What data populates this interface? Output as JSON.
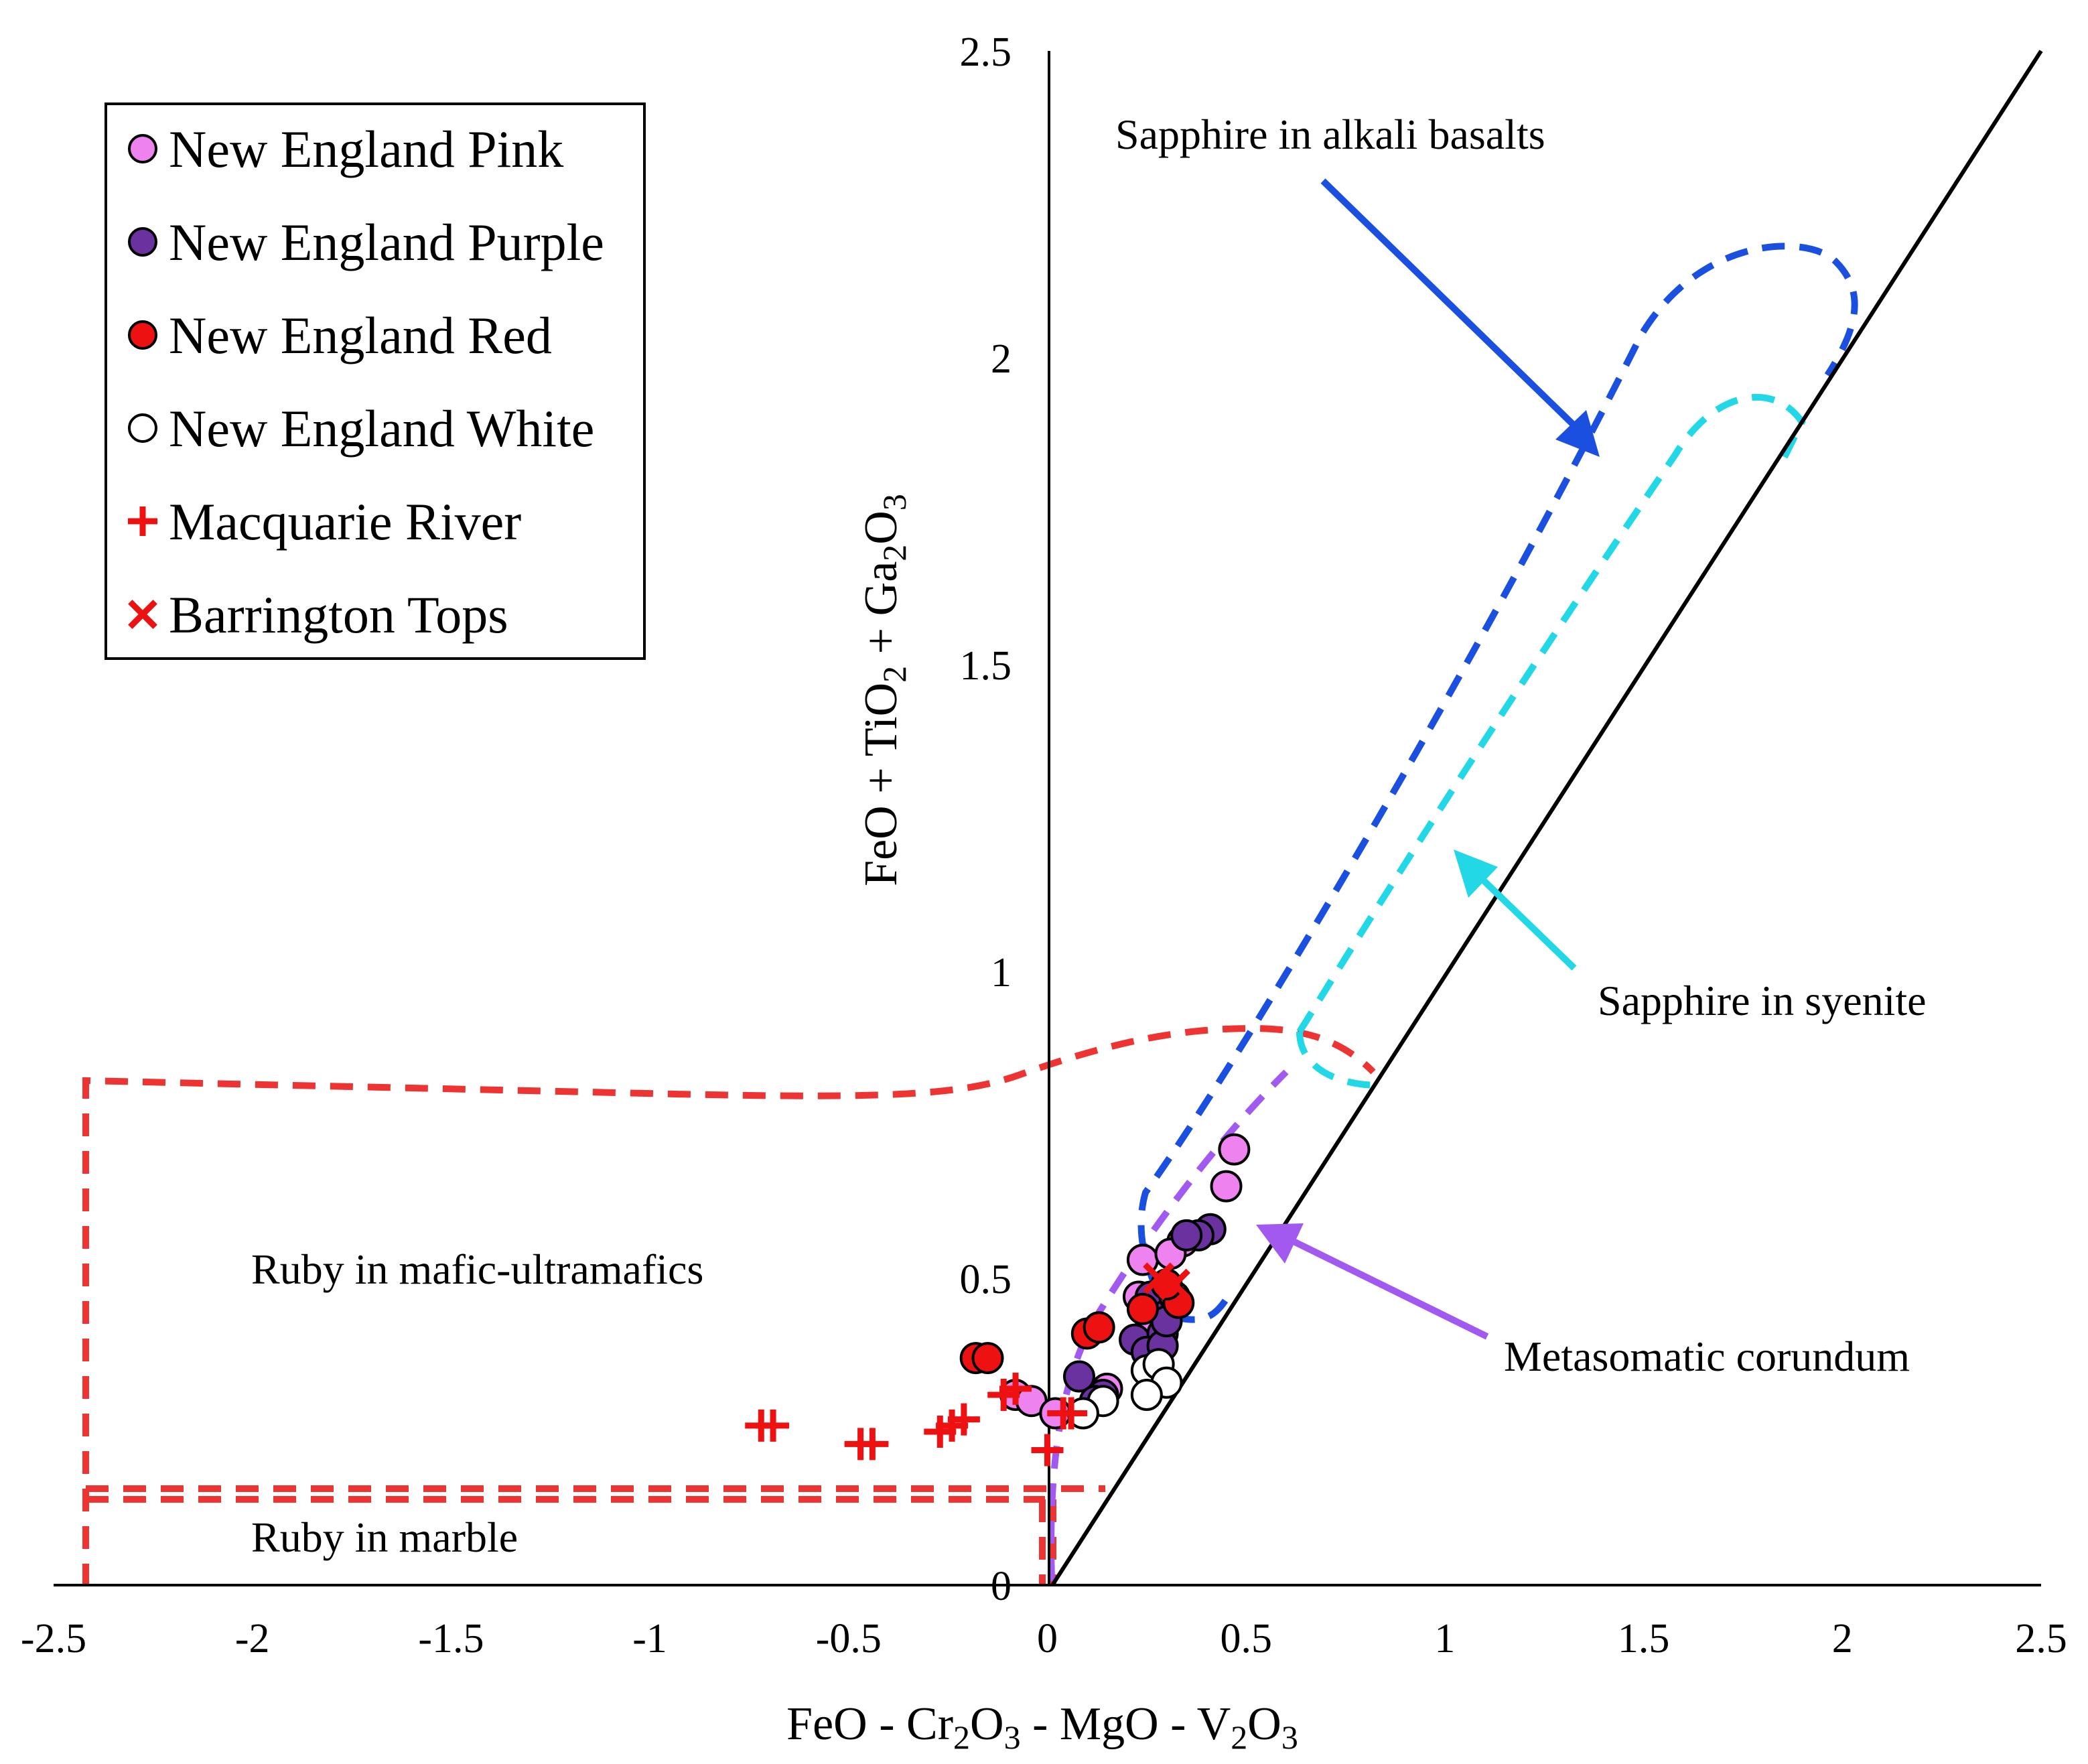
{
  "chart_data": {
    "type": "scatter",
    "title": "",
    "xlabel": "FeO - Cr2O3 - MgO - V2O3",
    "ylabel": "FeO + TiO2 + Ga2O3",
    "xlim": [
      -2.5,
      2.5
    ],
    "ylim": [
      0,
      2.5
    ],
    "x_ticks": [
      "-2.5",
      "-2",
      "-1.5",
      "-1",
      "-0.5",
      "0",
      "0.5",
      "1",
      "1.5",
      "2",
      "2.5"
    ],
    "y_ticks": [
      "0",
      "0.5",
      "1",
      "1.5",
      "2",
      "2.5"
    ],
    "grid": false,
    "legend_position": "top-left",
    "series": [
      {
        "name": "New England Pink",
        "marker": "circle",
        "color": "#ee82ee",
        "points": [
          [
            0.47,
            0.71
          ],
          [
            0.45,
            0.65
          ],
          [
            0.34,
            0.56
          ],
          [
            0.24,
            0.53
          ],
          [
            0.31,
            0.54
          ],
          [
            0.23,
            0.47
          ],
          [
            -0.08,
            0.31
          ],
          [
            -0.04,
            0.3
          ],
          [
            0.02,
            0.28
          ],
          [
            0.15,
            0.32
          ],
          [
            0.26,
            0.42
          ]
        ]
      },
      {
        "name": "New England Purple",
        "marker": "circle",
        "color": "#6a329f",
        "points": [
          [
            0.41,
            0.58
          ],
          [
            0.38,
            0.57
          ],
          [
            0.35,
            0.57
          ],
          [
            0.26,
            0.47
          ],
          [
            0.3,
            0.44
          ],
          [
            0.22,
            0.4
          ],
          [
            0.29,
            0.41
          ],
          [
            0.25,
            0.38
          ],
          [
            0.29,
            0.39
          ],
          [
            0.08,
            0.34
          ],
          [
            0.14,
            0.31
          ],
          [
            0.12,
            0.3
          ],
          [
            0.32,
            0.47
          ],
          [
            0.3,
            0.43
          ]
        ]
      },
      {
        "name": "New England Red",
        "marker": "circle",
        "color": "#ee1111",
        "points": [
          [
            -0.18,
            0.37
          ],
          [
            -0.15,
            0.37
          ],
          [
            0.1,
            0.41
          ],
          [
            0.13,
            0.42
          ],
          [
            0.24,
            0.45
          ],
          [
            0.33,
            0.46
          ],
          [
            0.3,
            0.49
          ]
        ]
      },
      {
        "name": "New England White",
        "marker": "circle",
        "color": "#ffffff",
        "points": [
          [
            0.25,
            0.35
          ],
          [
            0.28,
            0.36
          ],
          [
            0.3,
            0.33
          ],
          [
            0.25,
            0.31
          ],
          [
            0.14,
            0.3
          ],
          [
            0.09,
            0.28
          ]
        ]
      },
      {
        "name": "Macquarie River",
        "marker": "plus",
        "color": "#ee1111",
        "points": [
          [
            -0.72,
            0.26
          ],
          [
            -0.69,
            0.26
          ],
          [
            -0.47,
            0.23
          ],
          [
            -0.44,
            0.23
          ],
          [
            -0.27,
            0.25
          ],
          [
            -0.24,
            0.26
          ],
          [
            -0.21,
            0.27
          ],
          [
            -0.11,
            0.31
          ],
          [
            -0.08,
            0.32
          ],
          [
            0.04,
            0.28
          ],
          [
            0.06,
            0.28
          ],
          [
            0.0,
            0.22
          ]
        ]
      },
      {
        "name": "Barrington Tops",
        "marker": "x",
        "color": "#ee1111",
        "points": [
          [
            0.28,
            0.5
          ],
          [
            0.32,
            0.49
          ]
        ]
      }
    ],
    "reference_line": {
      "name": "1:1 line",
      "points": [
        [
          0,
          0
        ],
        [
          2.5,
          2.5
        ]
      ],
      "color": "#000000"
    },
    "fields": [
      {
        "name": "Sapphire in alkali basalts",
        "color": "#1a4fe0"
      },
      {
        "name": "Sapphire in syenite",
        "color": "#22d8e6"
      },
      {
        "name": "Metasomatic corundum",
        "color": "#a259f0"
      },
      {
        "name": "Ruby in mafic-ultramafics",
        "color": "#ee3333"
      },
      {
        "name": "Ruby in marble",
        "color": "#ee3333"
      }
    ]
  },
  "labels": {
    "x_title_parts": [
      "FeO - Cr",
      "2",
      "O",
      "3",
      " - MgO - V",
      "2",
      "O",
      "3"
    ],
    "y_title_parts": [
      "FeO + TiO",
      "2",
      " + Ga",
      "2",
      "O",
      "3"
    ],
    "alkali_basalts": "Sapphire in alkali basalts",
    "syenite": "Sapphire in syenite",
    "metasomatic": "Metasomatic corundum",
    "mafic": "Ruby in mafic-ultramafics",
    "marble": "Ruby in marble"
  }
}
